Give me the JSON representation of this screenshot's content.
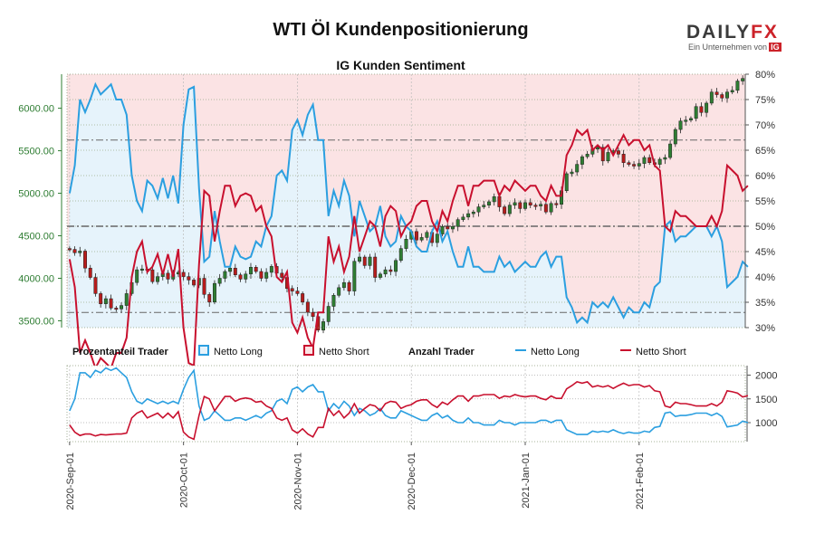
{
  "title": "WTI Öl Kundenpositionierung",
  "subtitle": "IG Kunden Sentiment",
  "logo": {
    "word_left": "DAILY",
    "word_right": "FX",
    "tagline": "Ein Unternehmen von",
    "tag_brand": "IG"
  },
  "colors": {
    "long": "#2b9fe0",
    "short": "#c8102e",
    "long_fill": "#e6f3fb",
    "short_fill": "#fbe3e4",
    "candle_up": "#2e7d32",
    "candle_down": "#b71c1c",
    "left_axis": "#2e7d32"
  },
  "legend": {
    "pct_label": "Prozentanteil Trader",
    "pct_long": "Netto Long",
    "pct_short": "Netto Short",
    "count_label": "Anzahl Trader",
    "count_long": "Netto Long",
    "count_short": "Netto Short"
  },
  "chart_data": [
    {
      "type": "candlestick+line",
      "title": "IG Kunden Sentiment",
      "left_axis": {
        "ticks": [
          "3500.00",
          "4000.00",
          "4500.00",
          "5000.00",
          "5500.00",
          "6000.00"
        ],
        "range": [
          3420,
          6400
        ]
      },
      "right_axis": {
        "ticks": [
          "30%",
          "35%",
          "40%",
          "45%",
          "50%",
          "55%",
          "60%",
          "65%",
          "70%",
          "75%",
          "80%"
        ],
        "range": [
          30,
          80
        ]
      },
      "reference_lines_pct": [
        50,
        67,
        33
      ],
      "price_close": [
        4340,
        4300,
        4320,
        4120,
        4010,
        3820,
        3700,
        3760,
        3650,
        3640,
        3680,
        3820,
        3950,
        4100,
        4110,
        4100,
        3960,
        4020,
        4060,
        3990,
        4050,
        4070,
        4020,
        3980,
        3920,
        4000,
        3810,
        3720,
        3940,
        4000,
        4080,
        4120,
        4040,
        3990,
        4050,
        4130,
        4080,
        4000,
        4070,
        4140,
        4060,
        4010,
        3880,
        3850,
        3820,
        3720,
        3600,
        3550,
        3390,
        3490,
        3670,
        3800,
        3890,
        3950,
        3850,
        4200,
        4250,
        4150,
        4250,
        4010,
        4050,
        4100,
        4080,
        4210,
        4350,
        4460,
        4550,
        4450,
        4480,
        4540,
        4420,
        4520,
        4610,
        4580,
        4610,
        4690,
        4720,
        4760,
        4780,
        4840,
        4860,
        4900,
        4960,
        4840,
        4760,
        4860,
        4890,
        4820,
        4890,
        4860,
        4850,
        4870,
        4780,
        4880,
        4870,
        5030,
        5230,
        5250,
        5340,
        5430,
        5460,
        5520,
        5540,
        5380,
        5480,
        5500,
        5460,
        5360,
        5340,
        5320,
        5350,
        5420,
        5360,
        5340,
        5400,
        5420,
        5580,
        5750,
        5850,
        5860,
        5880,
        6020,
        5950,
        6060,
        6190,
        6160,
        6120,
        6190,
        6210,
        6320,
        6350
      ],
      "pct_long": [
        56.5,
        62,
        75,
        72.5,
        75,
        78,
        76,
        77,
        78,
        75,
        75,
        72,
        60,
        55,
        53,
        59,
        58,
        55.5,
        59.5,
        55.5,
        60,
        54.5,
        70,
        77,
        77.5,
        57.5,
        43,
        44,
        53,
        47,
        42,
        42,
        46,
        44,
        43.5,
        44,
        47,
        46,
        50,
        52,
        60,
        61,
        59,
        69,
        71,
        68,
        72,
        74,
        67,
        67,
        52,
        57,
        54,
        59,
        56,
        48,
        55,
        52,
        49,
        50,
        54,
        48,
        46,
        47,
        52,
        50,
        49,
        46,
        45,
        45,
        49,
        51,
        47,
        49,
        45,
        42,
        42,
        46,
        42,
        42,
        41,
        41,
        41,
        44,
        42,
        43,
        41,
        42,
        43,
        42,
        42,
        44,
        45,
        42,
        44,
        44,
        36,
        34,
        31,
        32,
        31,
        35,
        34,
        35,
        34,
        36,
        34,
        32,
        34,
        33,
        33,
        35,
        34,
        38,
        39,
        50,
        51,
        47,
        48,
        48,
        49,
        50,
        50,
        50,
        48,
        50,
        47,
        38,
        39,
        40,
        43,
        42
      ],
      "pct_short": [
        43.5,
        38,
        25,
        27.5,
        25,
        22,
        24,
        23,
        22,
        25,
        25,
        28,
        40,
        45,
        47,
        41,
        42,
        44.5,
        40.5,
        44.5,
        40,
        45.5,
        30,
        23,
        22.5,
        42.5,
        57,
        56,
        47,
        53,
        58,
        58,
        54,
        56,
        56.5,
        56,
        53,
        54,
        50,
        48,
        40,
        39,
        41,
        31,
        29,
        32,
        28,
        26,
        33,
        33,
        48,
        43,
        46,
        41,
        44,
        52,
        45,
        48,
        51,
        50,
        46,
        52,
        54,
        53,
        48,
        50,
        51,
        54,
        55,
        55,
        51,
        49,
        53,
        51,
        55,
        58,
        58,
        54,
        58,
        58,
        59,
        59,
        59,
        56,
        58,
        57,
        59,
        58,
        57,
        58,
        58,
        56,
        55,
        58,
        56,
        56,
        64,
        66,
        69,
        68,
        69,
        65,
        66,
        65,
        66,
        64,
        66,
        68,
        66,
        67,
        67,
        65,
        66,
        62,
        61,
        50,
        49,
        53,
        52,
        52,
        51,
        50,
        50,
        50,
        52,
        50,
        53,
        62,
        61,
        60,
        57,
        58
      ]
    },
    {
      "type": "line",
      "title": "Anzahl Trader",
      "ticks": [
        "1000",
        "1500",
        "2000"
      ],
      "range": [
        600,
        2200
      ],
      "count_long": [
        1250,
        1500,
        2050,
        2050,
        1950,
        2100,
        2050,
        2150,
        2100,
        2150,
        2050,
        1950,
        1650,
        1450,
        1400,
        1500,
        1450,
        1400,
        1450,
        1400,
        1450,
        1400,
        1700,
        1950,
        2100,
        1350,
        1050,
        1100,
        1250,
        1150,
        1050,
        1050,
        1100,
        1100,
        1050,
        1100,
        1150,
        1100,
        1200,
        1250,
        1450,
        1500,
        1400,
        1700,
        1750,
        1650,
        1750,
        1800,
        1650,
        1650,
        1250,
        1400,
        1300,
        1450,
        1350,
        1150,
        1300,
        1250,
        1150,
        1200,
        1300,
        1150,
        1100,
        1100,
        1250,
        1200,
        1150,
        1100,
        1050,
        1050,
        1150,
        1200,
        1100,
        1150,
        1050,
        1000,
        1000,
        1100,
        1000,
        1000,
        950,
        950,
        950,
        1050,
        1000,
        1000,
        950,
        1000,
        1000,
        1000,
        1000,
        1050,
        1050,
        1000,
        1050,
        1050,
        850,
        800,
        750,
        750,
        750,
        820,
        800,
        820,
        800,
        850,
        800,
        770,
        800,
        780,
        780,
        820,
        800,
        900,
        920,
        1200,
        1220,
        1130,
        1150,
        1150,
        1170,
        1200,
        1200,
        1200,
        1150,
        1200,
        1130,
        910,
        930,
        950,
        1030,
        1000
      ],
      "count_short": [
        950,
        800,
        730,
        760,
        760,
        720,
        750,
        740,
        750,
        760,
        760,
        780,
        1100,
        1200,
        1250,
        1100,
        1150,
        1200,
        1100,
        1200,
        1100,
        1230,
        800,
        700,
        650,
        1150,
        1550,
        1500,
        1250,
        1400,
        1550,
        1550,
        1450,
        1500,
        1520,
        1500,
        1430,
        1450,
        1350,
        1300,
        1100,
        1050,
        1100,
        850,
        780,
        870,
        760,
        700,
        900,
        900,
        1300,
        1150,
        1250,
        1100,
        1200,
        1400,
        1200,
        1300,
        1380,
        1350,
        1250,
        1400,
        1450,
        1430,
        1300,
        1350,
        1380,
        1450,
        1480,
        1480,
        1380,
        1320,
        1430,
        1380,
        1480,
        1560,
        1560,
        1450,
        1560,
        1560,
        1590,
        1590,
        1590,
        1510,
        1560,
        1540,
        1590,
        1560,
        1540,
        1560,
        1560,
        1510,
        1480,
        1560,
        1510,
        1510,
        1710,
        1780,
        1860,
        1830,
        1860,
        1750,
        1780,
        1750,
        1780,
        1720,
        1780,
        1830,
        1780,
        1800,
        1800,
        1750,
        1780,
        1670,
        1650,
        1350,
        1320,
        1430,
        1400,
        1400,
        1380,
        1350,
        1350,
        1350,
        1400,
        1350,
        1430,
        1670,
        1650,
        1620,
        1540,
        1570
      ]
    }
  ],
  "x_axis": {
    "labels": [
      "2020-Sep-01",
      "2020-Oct-01",
      "2020-Nov-01",
      "2020-Dec-01",
      "2021-Jan-01",
      "2021-Feb-01"
    ],
    "label_index": [
      0,
      22,
      44,
      66,
      88,
      110
    ]
  }
}
